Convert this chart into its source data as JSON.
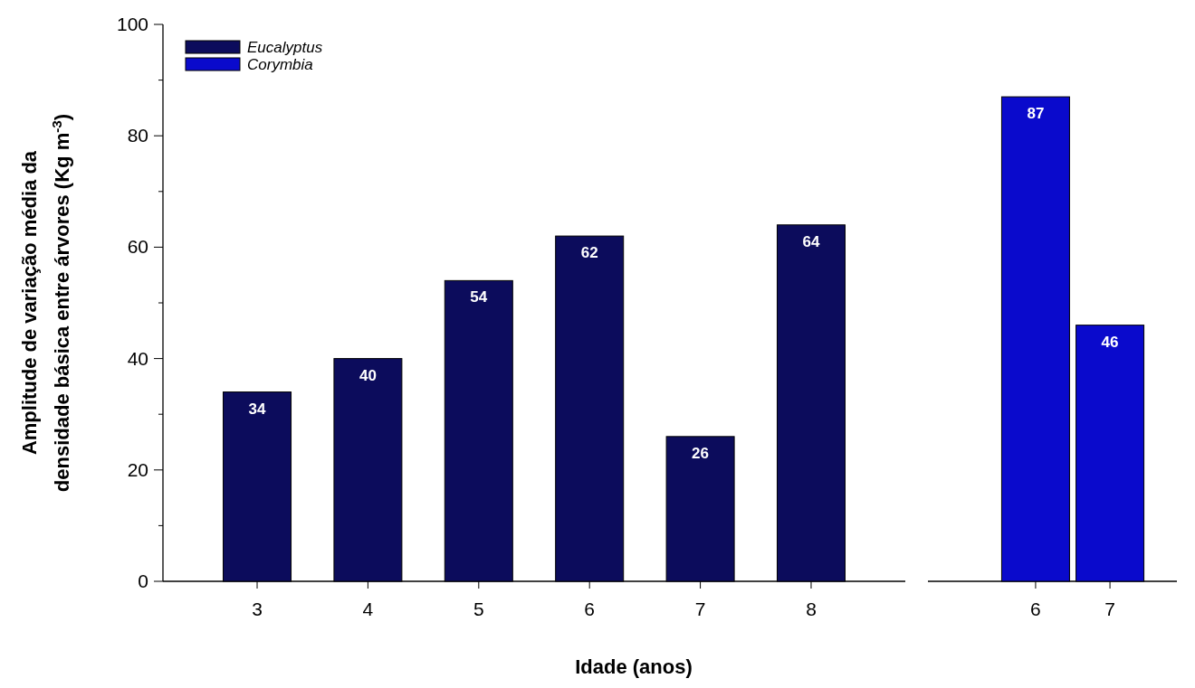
{
  "chart_data": [
    {
      "type": "bar",
      "categories": [
        "3",
        "4",
        "5",
        "6",
        "7",
        "8"
      ],
      "series": [
        {
          "name": "Eucalyptus",
          "color": "#0c0c5c",
          "values": [
            34,
            40,
            54,
            62,
            26,
            64
          ]
        }
      ],
      "ylim": [
        0,
        100
      ],
      "yticks": [
        0,
        {
          "value": 10,
          "label": null
        },
        20,
        {
          "value": 30,
          "label": null
        },
        40,
        {
          "value": 50,
          "label": null
        },
        60,
        {
          "value": 70,
          "label": null
        },
        80,
        {
          "value": 90,
          "label": null
        },
        100
      ],
      "ylabel": "Amplitude de variação média da\ndensidade básica entre árvores (Kg m$^{-3}$)",
      "xlabel": "Idade (anos)",
      "data_labels": true,
      "legend": "top left",
      "grid": false
    },
    {
      "type": "bar",
      "categories": [
        "6",
        "7"
      ],
      "series": [
        {
          "name": "Corymbia",
          "color": "#0a0acc",
          "values": [
            87,
            46
          ]
        }
      ],
      "ylim": [
        0,
        100
      ],
      "tick_labels": "x",
      "data_labels": true,
      "grid": false
    }
  ]
}
